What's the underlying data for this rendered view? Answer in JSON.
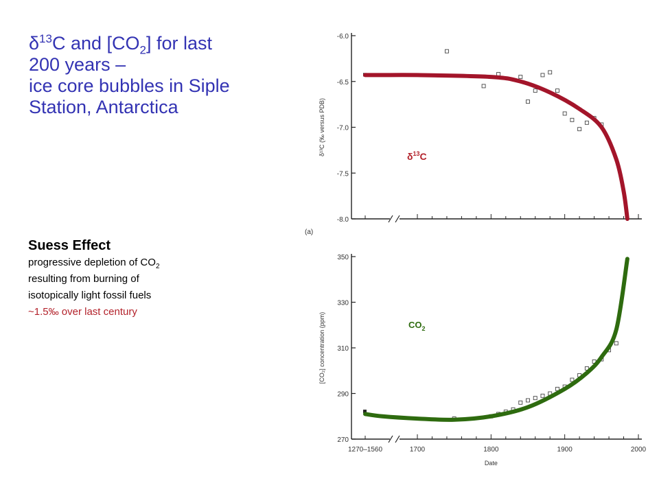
{
  "title": {
    "delta_symbol": "δ",
    "sup": "13",
    "line1_a": "C and [CO",
    "sub": "2",
    "line1_b": "] for last",
    "line2": "200 years –",
    "line3": "ice core bubbles in Siple",
    "line4": "Station, Antarctica"
  },
  "suess": {
    "heading": "Suess Effect",
    "line1_a": "progressive depletion of CO",
    "line1_sub": "2",
    "line2": "resulting from burning of",
    "line3": "isotopically light fossil fuels",
    "line4": "~1.5‰ over last century"
  },
  "colors": {
    "title": "#3333b3",
    "accent_red": "#b3222b",
    "d13c_curve": "#a3152a",
    "co2_curve": "#2e6b0f",
    "label_d13c": "#b3222b",
    "label_co2": "#2e6b0f"
  },
  "chart_data": [
    {
      "type": "scatter",
      "panel_label": "(a)",
      "ylabel": "δ¹³C (‰ versus PDB)",
      "yticks": [
        "-6.0",
        "-6.5",
        "-7.0",
        "-7.5",
        "-8.0"
      ],
      "ylim": [
        -8.0,
        -6.0
      ],
      "annotation": {
        "base": "δ",
        "sup": "13",
        "tail": "C"
      },
      "series": [
        {
          "kind": "points",
          "x": [
            1400,
            1740,
            1790,
            1810,
            1840,
            1850,
            1860,
            1870,
            1880,
            1890,
            1900,
            1910,
            1920,
            1930,
            1940,
            1950
          ],
          "y": [
            -6.43,
            -6.17,
            -6.55,
            -6.42,
            -6.45,
            -6.72,
            -6.6,
            -6.43,
            -6.4,
            -6.6,
            -6.85,
            -6.92,
            -7.02,
            -6.95,
            -6.9,
            -6.97
          ]
        },
        {
          "kind": "fit",
          "x": [
            1400,
            1560,
            1700,
            1800,
            1840,
            1880,
            1920,
            1950,
            1970,
            1980,
            1985
          ],
          "y": [
            -6.43,
            -6.43,
            -6.43,
            -6.45,
            -6.5,
            -6.62,
            -6.8,
            -7.0,
            -7.35,
            -7.7,
            -8.0
          ]
        }
      ]
    },
    {
      "type": "scatter",
      "ylabel": "[CO₂] concentration (ppm)",
      "xlabel": "Date",
      "yticks": [
        "350",
        "330",
        "310",
        "290",
        "270"
      ],
      "ylim": [
        270,
        350
      ],
      "xticks": [
        "1270–1560",
        "1700",
        "1800",
        "1900",
        "2000"
      ],
      "annotation": {
        "base": "CO",
        "sub": "2"
      },
      "series": [
        {
          "kind": "points",
          "x": [
            1400,
            1750,
            1800,
            1810,
            1820,
            1830,
            1840,
            1850,
            1860,
            1870,
            1880,
            1890,
            1900,
            1910,
            1920,
            1930,
            1940,
            1950,
            1960,
            1970
          ],
          "y": [
            282,
            279,
            280,
            281,
            282,
            283,
            286,
            287,
            288,
            289,
            290,
            292,
            293,
            296,
            298,
            301,
            304,
            305,
            309,
            312
          ]
        },
        {
          "kind": "fit",
          "x": [
            1400,
            1560,
            1700,
            1750,
            1800,
            1850,
            1900,
            1930,
            1950,
            1970,
            1985
          ],
          "y": [
            281,
            280,
            279,
            278.5,
            280,
            284,
            292,
            299,
            306,
            318,
            349
          ]
        }
      ]
    }
  ]
}
